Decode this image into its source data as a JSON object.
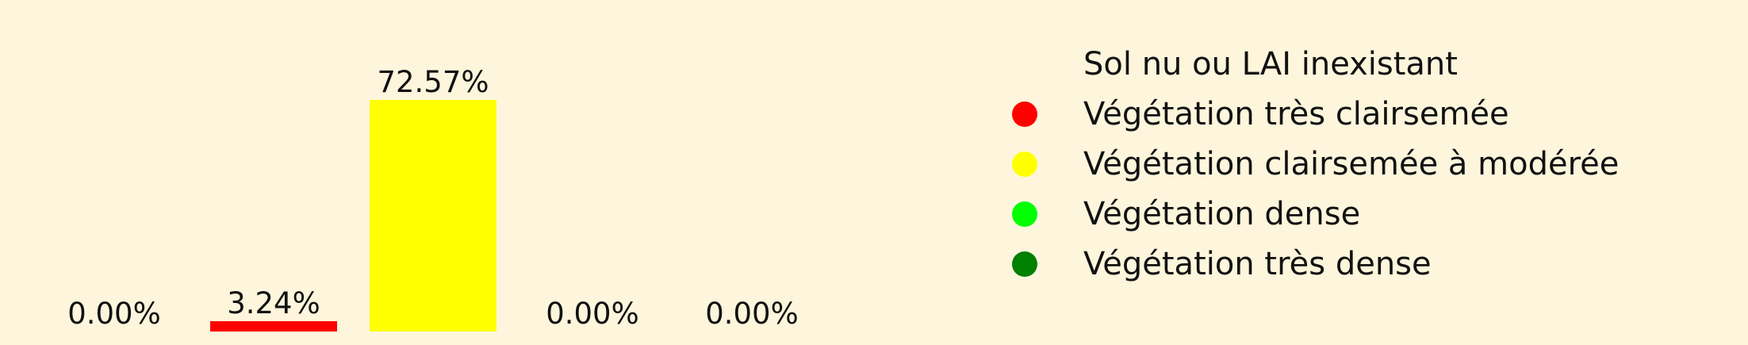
{
  "chart_data": {
    "type": "bar",
    "categories": [
      "Sol nu ou LAI inexistant",
      "Végétation très clairsemée",
      "Végétation clairsemée à modérée",
      "Végétation dense",
      "Végétation très dense"
    ],
    "values": [
      0.0,
      3.24,
      72.57,
      0.0,
      0.0
    ],
    "value_labels": [
      "0.00%",
      "3.24%",
      "72.57%",
      "0.00%",
      "0.00%"
    ],
    "colors": [
      "#fdf6dc",
      "#ff0000",
      "#ffff00",
      "#00ff00",
      "#008000"
    ],
    "ylim": [
      0,
      72.57
    ],
    "grid": false,
    "axes_visible": false,
    "legend": {
      "placement": "right",
      "entries": [
        "Sol nu ou LAI inexistant",
        "Végétation très clairsemée",
        "Végétation clairsemée à modérée",
        "Végétation dense",
        "Végétation très dense"
      ]
    }
  },
  "background_color": "#fdf6dc"
}
